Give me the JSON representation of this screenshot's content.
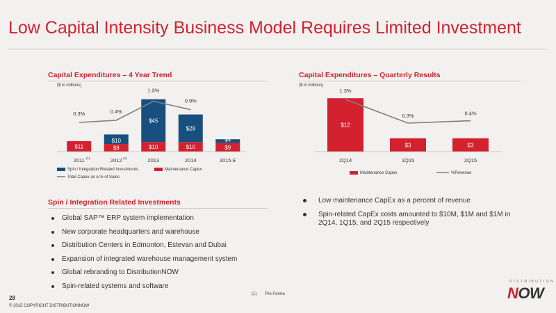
{
  "title": "Low Capital Intensity Business Model Requires Limited Investment",
  "colors": {
    "accent": "#d3212f",
    "spin_bar": "#184f7e",
    "maint_bar": "#d3212f",
    "line": "#7f7f7f"
  },
  "left_panel": {
    "heading": "Capital Expenditures – 4 Year Trend",
    "unit_note": "($ in millions)"
  },
  "right_panel": {
    "heading": "Capital Expenditures – Quarterly Results",
    "unit_note": "($ in millions)"
  },
  "chart_data": [
    {
      "type": "bar",
      "stacked": true,
      "categories": [
        "2011",
        "2012",
        "2013",
        "2014",
        "2015 E"
      ],
      "category_footnotes": [
        "(1)",
        "(1)",
        "",
        "",
        ""
      ],
      "series": [
        {
          "name": "Spin / Integration Related Investments",
          "values": [
            0,
            10,
            45,
            29,
            4
          ],
          "labels": [
            "",
            "$10",
            "$45",
            "$29",
            "$4"
          ]
        },
        {
          "name": "Maintenance Capex",
          "values": [
            11,
            8,
            10,
            10,
            9
          ],
          "labels": [
            "$11",
            "$8",
            "$10",
            "$10",
            "$9"
          ]
        }
      ],
      "line_series": {
        "name": "Total Capex as a % of Sales",
        "values": [
          0.3,
          0.4,
          1.3,
          0.9,
          null
        ],
        "labels": [
          "0.3%",
          "0.4%",
          "1.3%",
          "0.9%",
          ""
        ]
      },
      "legend_position": "bottom-left",
      "grid": false
    },
    {
      "type": "bar",
      "categories": [
        "2Q14",
        "1Q15",
        "2Q15"
      ],
      "series": [
        {
          "name": "Maintenance Capex",
          "values": [
            12,
            3,
            3
          ],
          "labels": [
            "$12",
            "$3",
            "$3"
          ]
        }
      ],
      "line_series": {
        "name": "%Revenue",
        "values": [
          1.3,
          0.3,
          0.4
        ],
        "labels": [
          "1.3%",
          "0.3%",
          "0.4%"
        ]
      },
      "legend_position": "bottom",
      "grid": false
    }
  ],
  "spin_section": {
    "heading": "Spin / Integration Related Investments",
    "items": [
      "Global SAP™ ERP system implementation",
      "New corporate headquarters and warehouse",
      "Distribution Centers in Edmonton, Estevan and Dubai",
      "Expansion of integrated warehouse management system",
      "Global rebranding to DistributionNOW",
      "Spin-related systems and software"
    ]
  },
  "right_bullets": [
    "Low maintenance CapEx as a percent of revenue",
    "Spin-related CapEx costs amounted to $10M, $1M and $1M in 2Q14, 1Q15, and 2Q15 respectively"
  ],
  "footer": {
    "page_number": "28",
    "copyright": "© 2015 COPYRIGHT DISTRIBUTIONNOW",
    "footnote_marker": "(1)",
    "footnote_text": "Pro Forma"
  },
  "logo": {
    "top_text": "DISTRIBUTION",
    "main_n": "N",
    "main_rest": "OW"
  }
}
